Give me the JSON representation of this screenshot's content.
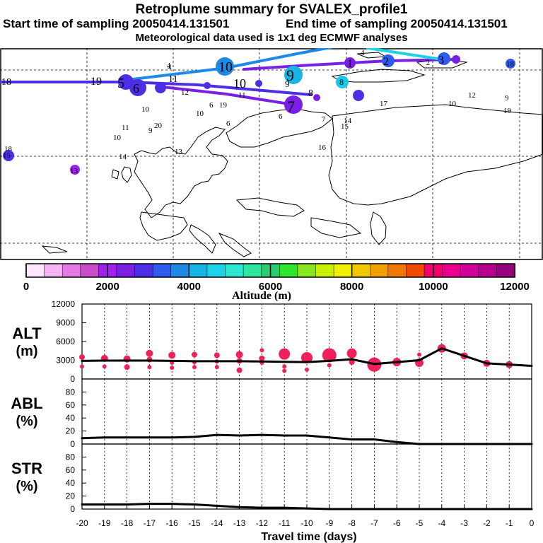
{
  "header": {
    "title": "Retroplume summary for SVALEX_profile1",
    "start_label": "Start time of sampling 20050414.131501",
    "end_label": "End time of sampling 20050414.131501",
    "met_label": "Meteorological data used is 1x1 deg ECMWF analyses"
  },
  "colorbar": {
    "label": "Altitude (m)",
    "ticks": [
      "0",
      "2000",
      "4000",
      "6000",
      "8000",
      "10000",
      "12000"
    ],
    "colors": [
      "#ffe6ff",
      "#f5b4f5",
      "#e67be6",
      "#cc4dcc",
      "#a020f0",
      "#7b1fe6",
      "#4d2ee6",
      "#2e5cf0",
      "#1e8ae6",
      "#18b4e6",
      "#20d2e6",
      "#2ee6d2",
      "#2ee6a0",
      "#2ecc70",
      "#2ee62e",
      "#8ae61e",
      "#c8f000",
      "#f0f000",
      "#f0c800",
      "#f0a000",
      "#f07800",
      "#f04b00",
      "#f0006e",
      "#e6008c",
      "#d2009b",
      "#b4008c",
      "#96007d"
    ]
  },
  "map": {
    "plume_labels": [
      {
        "label": "10",
        "color": "#1e8ae6"
      },
      {
        "label": "9",
        "color": "#18b4e6"
      },
      {
        "label": "8",
        "color": "#18c8e6"
      },
      {
        "label": "7",
        "color": "#7b1fe6"
      },
      {
        "label": "6",
        "color": "#4d2ee6"
      },
      {
        "label": "5",
        "color": "#4d2ee6"
      },
      {
        "label": "4",
        "color": "#1e8ae6"
      },
      {
        "label": "3",
        "color": "#18b4e6"
      },
      {
        "label": "2",
        "color": "#2e5cf0"
      },
      {
        "label": "1",
        "color": "#7b1fe6"
      },
      {
        "label": "11",
        "color": "#4d2ee6"
      },
      {
        "label": "12",
        "color": "#7b1fe6"
      },
      {
        "label": "13",
        "color": "#a020f0"
      },
      {
        "label": "14",
        "color": "#a020f0"
      },
      {
        "label": "15",
        "color": "#a020f0"
      },
      {
        "label": "16",
        "color": "#a020f0"
      },
      {
        "label": "17",
        "color": "#cc4dcc"
      },
      {
        "label": "18",
        "color": "#4d2ee6"
      },
      {
        "label": "19",
        "color": "#7b1fe6"
      },
      {
        "label": "20",
        "color": "#a020f0"
      }
    ]
  },
  "chart_data": [
    {
      "type": "line",
      "panel": "ALT",
      "ylabel": "ALT (m)",
      "ylabel_line1": "ALT",
      "ylabel_line2": "(m)",
      "ylim": [
        0,
        12000
      ],
      "yticks": [
        "0",
        "3000",
        "6000",
        "9000",
        "12000"
      ],
      "yticks_values": [
        0,
        3000,
        6000,
        9000,
        12000
      ],
      "x": [
        -20,
        -19,
        -18,
        -17,
        -16,
        -15,
        -14,
        -13,
        -12,
        -11,
        -10,
        -9,
        -8,
        -7,
        -6,
        -5,
        -4,
        -3,
        -2,
        -1,
        0
      ],
      "values": [
        2900,
        2950,
        2950,
        2950,
        2900,
        2850,
        2850,
        2850,
        2800,
        2750,
        2700,
        2900,
        3150,
        2400,
        2700,
        3000,
        4900,
        3700,
        2500,
        2300,
        2100
      ],
      "markers": [
        {
          "x": -20,
          "y": 3500,
          "s": 4
        },
        {
          "x": -20,
          "y": 2000,
          "s": 3
        },
        {
          "x": -19,
          "y": 3300,
          "s": 5
        },
        {
          "x": -19,
          "y": 2000,
          "s": 3
        },
        {
          "x": -18,
          "y": 3200,
          "s": 5
        },
        {
          "x": -18,
          "y": 1900,
          "s": 4
        },
        {
          "x": -17,
          "y": 4100,
          "s": 5
        },
        {
          "x": -17,
          "y": 3100,
          "s": 4
        },
        {
          "x": -17,
          "y": 1900,
          "s": 3
        },
        {
          "x": -16,
          "y": 3800,
          "s": 5
        },
        {
          "x": -16,
          "y": 2600,
          "s": 3
        },
        {
          "x": -16,
          "y": 1800,
          "s": 3
        },
        {
          "x": -15,
          "y": 3900,
          "s": 4
        },
        {
          "x": -15,
          "y": 2700,
          "s": 3
        },
        {
          "x": -15,
          "y": 1900,
          "s": 3
        },
        {
          "x": -14,
          "y": 3800,
          "s": 4
        },
        {
          "x": -14,
          "y": 2800,
          "s": 3
        },
        {
          "x": -14,
          "y": 1900,
          "s": 3
        },
        {
          "x": -13,
          "y": 3900,
          "s": 5
        },
        {
          "x": -13,
          "y": 2900,
          "s": 4
        },
        {
          "x": -13,
          "y": 1400,
          "s": 4
        },
        {
          "x": -12,
          "y": 4600,
          "s": 3
        },
        {
          "x": -12,
          "y": 3300,
          "s": 4
        },
        {
          "x": -12,
          "y": 2600,
          "s": 3
        },
        {
          "x": -11,
          "y": 4000,
          "s": 8
        },
        {
          "x": -11,
          "y": 2000,
          "s": 3
        },
        {
          "x": -11,
          "y": 1300,
          "s": 3
        },
        {
          "x": -10,
          "y": 3400,
          "s": 8
        },
        {
          "x": -10,
          "y": 1500,
          "s": 3
        },
        {
          "x": -9,
          "y": 3800,
          "s": 10
        },
        {
          "x": -9,
          "y": 2200,
          "s": 3
        },
        {
          "x": -8,
          "y": 4100,
          "s": 7
        },
        {
          "x": -8,
          "y": 2700,
          "s": 4
        },
        {
          "x": -7,
          "y": 2300,
          "s": 10
        },
        {
          "x": -6,
          "y": 2700,
          "s": 6
        },
        {
          "x": -5,
          "y": 3900,
          "s": 3
        },
        {
          "x": -5,
          "y": 2600,
          "s": 6
        },
        {
          "x": -4,
          "y": 4900,
          "s": 6
        },
        {
          "x": -3,
          "y": 3700,
          "s": 5
        },
        {
          "x": -2,
          "y": 2500,
          "s": 5
        },
        {
          "x": -1,
          "y": 2300,
          "s": 5
        }
      ]
    },
    {
      "type": "line",
      "panel": "ABL",
      "ylabel": "ABL (%)",
      "ylabel_line1": "ABL",
      "ylabel_line2": "(%)",
      "ylim": [
        0,
        100
      ],
      "yticks": [
        "0",
        "20",
        "40",
        "60",
        "80"
      ],
      "yticks_values": [
        0,
        20,
        40,
        60,
        80
      ],
      "x": [
        -20,
        -19,
        -18,
        -17,
        -16,
        -15,
        -14,
        -13,
        -12,
        -11,
        -10,
        -9,
        -8,
        -7,
        -6,
        -5,
        -4,
        -3,
        -2,
        -1,
        0
      ],
      "values": [
        9,
        10,
        10,
        10,
        10,
        11,
        14,
        13,
        14,
        13,
        13,
        10,
        7,
        7,
        3,
        0,
        0,
        0,
        0,
        0,
        0
      ]
    },
    {
      "type": "line",
      "panel": "STR",
      "ylabel": "STR (%)",
      "ylabel_line1": "STR",
      "ylabel_line2": "(%)",
      "ylim": [
        0,
        100
      ],
      "yticks": [
        "0",
        "20",
        "40",
        "60",
        "80"
      ],
      "yticks_values": [
        0,
        20,
        40,
        60,
        80
      ],
      "xlabel": "Travel time (days)",
      "xticks": [
        "-20",
        "-19",
        "-18",
        "-17",
        "-16",
        "-15",
        "-14",
        "-13",
        "-12",
        "-11",
        "-10",
        "-9",
        "-8",
        "-7",
        "-6",
        "-5",
        "-4",
        "-3",
        "-2",
        "-1",
        "0"
      ],
      "x": [
        -20,
        -19,
        -18,
        -17,
        -16,
        -15,
        -14,
        -13,
        -12,
        -11,
        -10,
        -9,
        -8,
        -7,
        -6,
        -5,
        -4,
        -3,
        -2,
        -1,
        0
      ],
      "values": [
        7,
        7,
        7,
        8,
        8,
        7,
        5,
        3,
        2,
        2,
        1,
        0,
        0,
        0,
        0,
        0,
        0,
        0,
        0,
        0,
        0
      ]
    }
  ]
}
